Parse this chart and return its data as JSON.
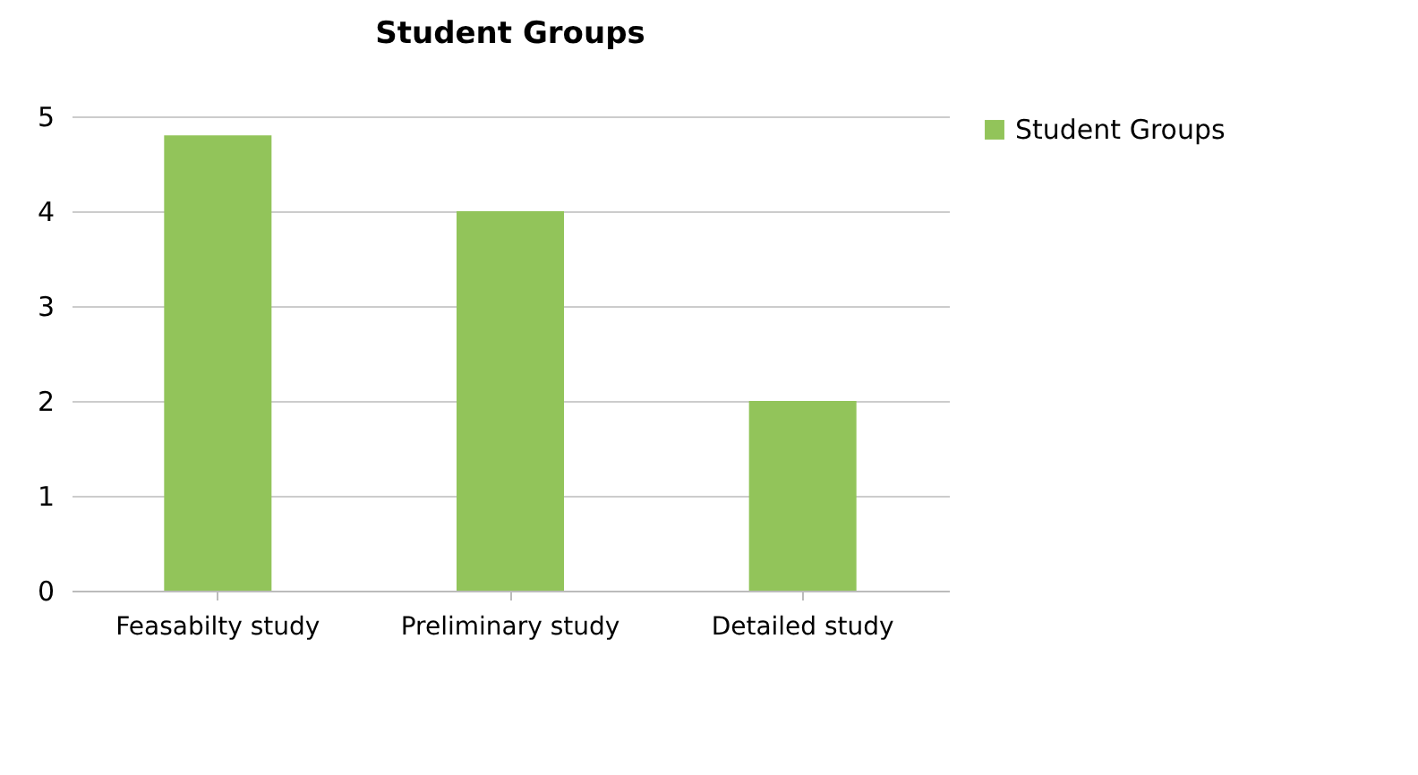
{
  "chart_data": {
    "type": "bar",
    "title": "Student Groups",
    "categories": [
      "Feasabilty study",
      "Preliminary study",
      "Detailed study"
    ],
    "series": [
      {
        "name": "Student Groups",
        "color": "#92c45a",
        "values": [
          4.8,
          4.0,
          2.0
        ]
      }
    ],
    "ylim": [
      0,
      5
    ],
    "yticks": [
      0,
      1,
      2,
      3,
      4,
      5
    ],
    "grid": "y",
    "legend": "right"
  }
}
